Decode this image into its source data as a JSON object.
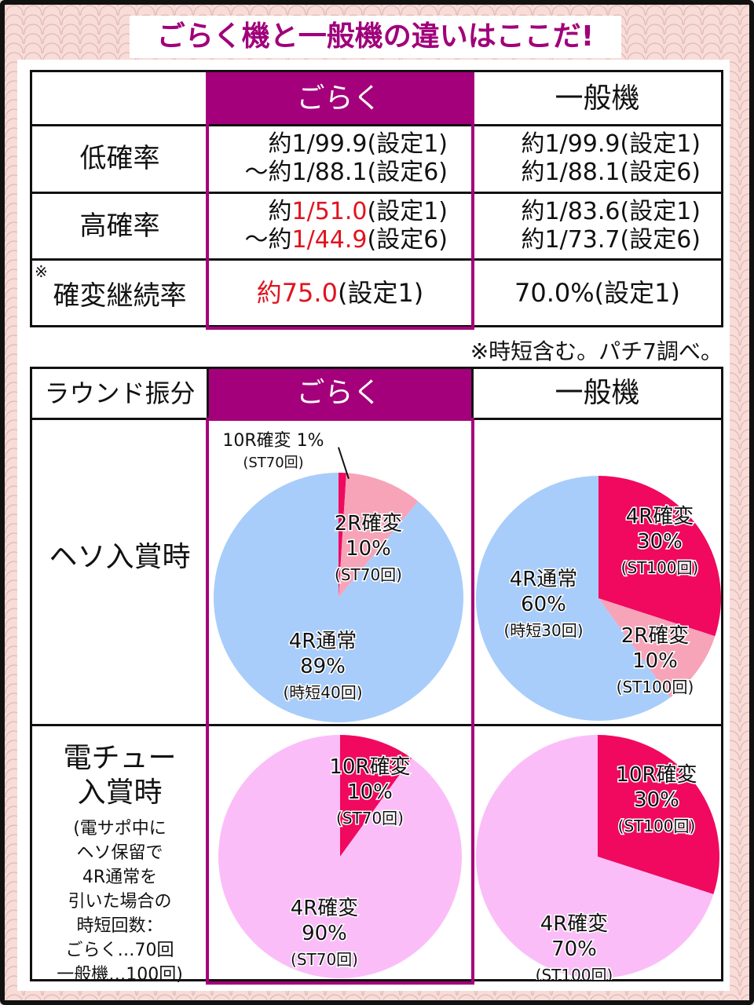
{
  "title": "ごらく機と一般機の違いはここだ!",
  "table1": {
    "col_goraku": "ごらく",
    "col_ippan": "一般機",
    "rows": {
      "low": {
        "label": "低確率",
        "goraku_l1": "約1/99.9(設定1)",
        "goraku_l2": "～約1/88.1(設定6)",
        "ippan_l1": "約1/99.9(設定1)",
        "ippan_l2": "約1/88.1(設定6)"
      },
      "high": {
        "label": "高確率",
        "goraku_l1_pre": "約",
        "goraku_l1_val": "1/51.0",
        "goraku_l1_post": "(設定1)",
        "goraku_l2_pre": "～約",
        "goraku_l2_val": "1/44.9",
        "goraku_l2_post": "(設定6)",
        "ippan_l1": "約1/83.6(設定1)",
        "ippan_l2": "約1/73.7(設定6)"
      },
      "kakuhen": {
        "mark": "※",
        "label": "確変継続率",
        "goraku_val": "約75.0",
        "goraku_post": "(設定1)",
        "ippan": "70.0%(設定1)"
      }
    },
    "note": "※時短含む。パチ7調べ。"
  },
  "table2": {
    "header_label": "ラウンド振分",
    "col_goraku": "ごらく",
    "col_ippan": "一般機",
    "row1_label": "ヘソ入賞時",
    "row2_label_l1": "電チュー",
    "row2_label_l2": "入賞時",
    "row2_note": [
      "(電サポ中に",
      "ヘソ保留で",
      "4R通常を",
      "引いた場合の",
      "時短回数：",
      "ごらく…70回",
      "一般機…100回)"
    ]
  },
  "colors": {
    "magenta": "#a5007b",
    "hot_pink": "#f0095f",
    "light_pink": "#f7a3b8",
    "light_blue": "#a8cdfb",
    "soft_pink": "#fbbdf8",
    "red": "#e0141e"
  },
  "chart_data": [
    {
      "type": "pie",
      "name": "goraku-heso",
      "slices": [
        {
          "label": "10R確変",
          "pct": 1,
          "sub": "(ST70回)",
          "color": "#f0095f"
        },
        {
          "label": "2R確変",
          "pct": 10,
          "sub": "(ST70回)",
          "color": "#f7a3b8"
        },
        {
          "label": "4R通常",
          "pct": 89,
          "sub": "(時短40回)",
          "color": "#a8cdfb"
        }
      ]
    },
    {
      "type": "pie",
      "name": "ippan-heso",
      "slices": [
        {
          "label": "4R確変",
          "pct": 30,
          "sub": "(ST100回)",
          "color": "#f0095f"
        },
        {
          "label": "2R確変",
          "pct": 10,
          "sub": "(ST100回)",
          "color": "#f7a3b8"
        },
        {
          "label": "4R通常",
          "pct": 60,
          "sub": "(時短30回)",
          "color": "#a8cdfb"
        }
      ]
    },
    {
      "type": "pie",
      "name": "goraku-denchu",
      "slices": [
        {
          "label": "10R確変",
          "pct": 10,
          "sub": "(ST70回)",
          "color": "#f0095f"
        },
        {
          "label": "4R確変",
          "pct": 90,
          "sub": "(ST70回)",
          "color": "#fbbdf8"
        }
      ]
    },
    {
      "type": "pie",
      "name": "ippan-denchu",
      "slices": [
        {
          "label": "10R確変",
          "pct": 30,
          "sub": "(ST100回)",
          "color": "#f0095f"
        },
        {
          "label": "4R確変",
          "pct": 70,
          "sub": "(ST100回)",
          "color": "#fbbdf8"
        }
      ]
    }
  ]
}
